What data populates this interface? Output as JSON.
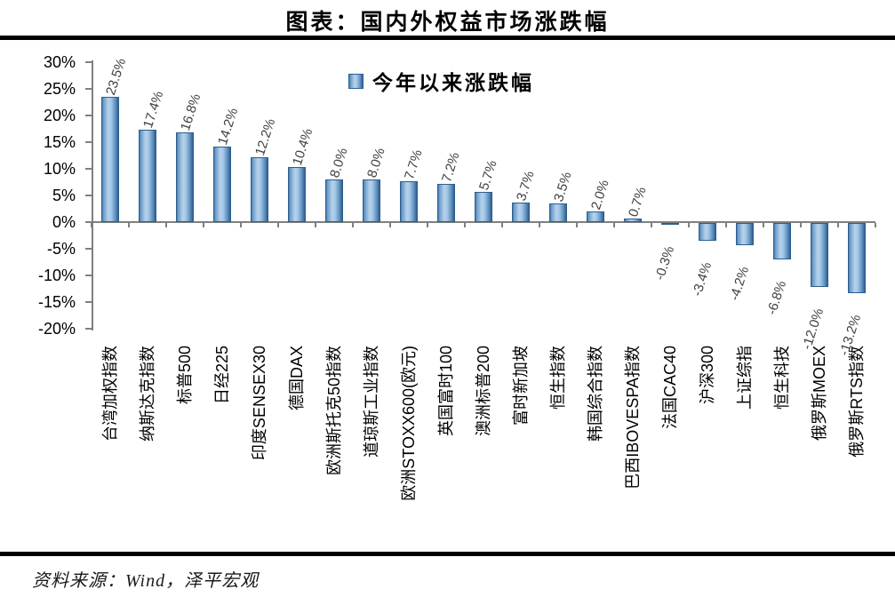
{
  "header": {
    "title": "图表：国内外权益市场涨跌幅"
  },
  "legend": {
    "label": "今年以来涨跌幅"
  },
  "footer": {
    "source": "资料来源：Wind，泽平宏观"
  },
  "chart_data": {
    "type": "bar",
    "title": "图表：国内外权益市场涨跌幅",
    "legend": [
      "今年以来涨跌幅"
    ],
    "legend_position": "top-center",
    "grid": false,
    "categories": [
      "台湾加权指数",
      "纳斯达克指数",
      "标普500",
      "日经225",
      "印度SENSEX30",
      "德国DAX",
      "欧洲斯托克50指数",
      "道琼斯工业指数",
      "欧洲STOXX600(欧元)",
      "英国富时100",
      "澳洲标普200",
      "富时新加坡",
      "恒生指数",
      "韩国综合指数",
      "巴西IBOVESPA指数",
      "法国CAC40",
      "沪深300",
      "上证综指",
      "恒生科技",
      "俄罗斯MOEX",
      "俄罗斯RTS指数"
    ],
    "series": [
      {
        "name": "今年以来涨跌幅",
        "values": [
          23.5,
          17.4,
          16.8,
          14.2,
          12.2,
          10.4,
          8.0,
          8.0,
          7.7,
          7.2,
          5.7,
          3.7,
          3.5,
          2.0,
          0.7,
          -0.3,
          -3.4,
          -4.2,
          -6.8,
          -12.0,
          -13.2
        ],
        "value_labels": [
          "23.5%",
          "17.4%",
          "16.8%",
          "14.2%",
          "12.2%",
          "10.4%",
          "8.0%",
          "8.0%",
          "7.7%",
          "7.2%",
          "5.7%",
          "3.7%",
          "3.5%",
          "2.0%",
          "0.7%",
          "-0.3%",
          "-3.4%",
          "-4.2%",
          "-6.8%",
          "-12.0%",
          "-13.2%"
        ]
      }
    ],
    "xlabel": "",
    "ylabel": "",
    "ylim": [
      -20,
      30
    ],
    "ytick_labels": [
      "30%",
      "25%",
      "20%",
      "15%",
      "10%",
      "5%",
      "0%",
      "-5%",
      "-10%",
      "-15%",
      "-20%"
    ],
    "ytick_values": [
      30,
      25,
      20,
      15,
      10,
      5,
      0,
      -5,
      -10,
      -15,
      -20
    ],
    "colors": {
      "bar_light": "#b5d2ec",
      "bar_dark": "#2e6191",
      "bar_border": "#2d5e8d",
      "axis": "#7f7f7f",
      "value_label": "#404040",
      "text": "#000000"
    },
    "source": "资料来源：Wind，泽平宏观"
  }
}
